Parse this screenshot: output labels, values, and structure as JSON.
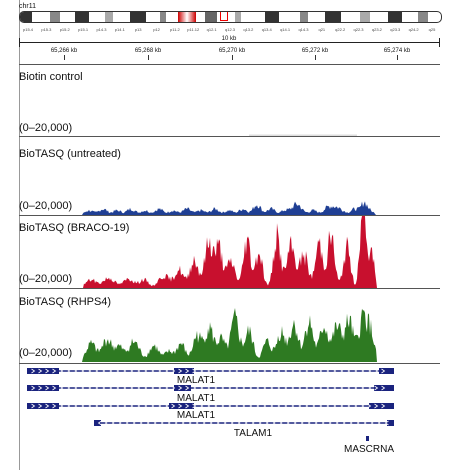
{
  "header": {
    "chromosome": "chr11",
    "scale": "10 kb",
    "band_labels": [
      "p15.4",
      "p15.3",
      "p15.2",
      "p15.1",
      "p14.3",
      "p14.1",
      "p13",
      "p12",
      "p11.2",
      "p11.12",
      "q12.1",
      "q12.3",
      "q13.2",
      "q13.4",
      "q14.1",
      "q14.3",
      "q21",
      "q22.2",
      "q22.3",
      "q23.2",
      "q23.3",
      "q24.2",
      "q25"
    ],
    "positions": [
      "65,266 kb",
      "65,268 kb",
      "65,270 kb",
      "65,272 kb",
      "65,274 kb"
    ]
  },
  "colors": {
    "biotin": "#bbbbbb",
    "untreated": "#1f3f94",
    "braco": "#c8102e",
    "rhps": "#2e7a22",
    "gene": "#1a237e"
  },
  "tracks": [
    {
      "id": "biotin",
      "name": "Biotin control",
      "range": "(0–20,000)"
    },
    {
      "id": "untreated",
      "name": "BioTASQ (untreated)",
      "range": "(0–20,000)"
    },
    {
      "id": "braco",
      "name": "BioTASQ (BRACO-19)",
      "range": "(0–20,000)"
    },
    {
      "id": "rhps",
      "name": "BioTASQ (RHPS4)",
      "range": "(0–20,000)"
    }
  ],
  "genes": [
    {
      "label": "MALAT1"
    },
    {
      "label": "MALAT1"
    },
    {
      "label": "MALAT1"
    },
    {
      "label": "TALAM1"
    },
    {
      "label": "MASCRNA"
    }
  ]
}
